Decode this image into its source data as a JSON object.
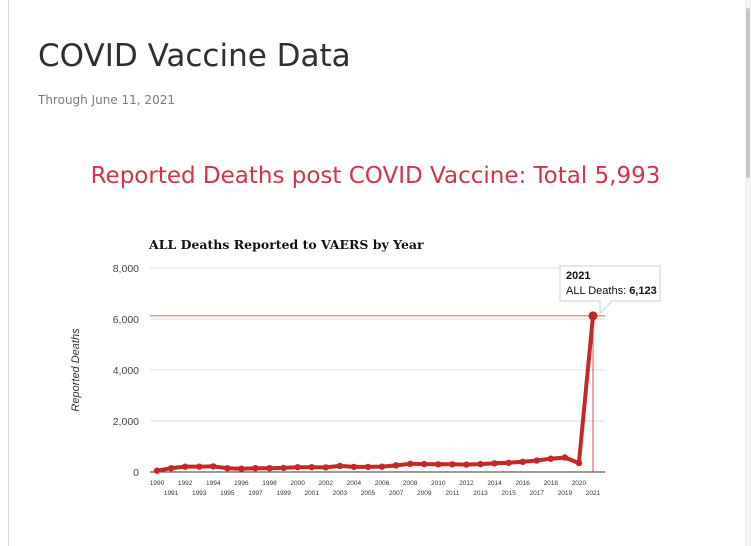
{
  "page": {
    "title": "COVID Vaccine Data",
    "subtitle": "Through June 11, 2021",
    "section_heading": "Reported Deaths post COVID Vaccine: Total 5,993"
  },
  "colors": {
    "heading": "#d0334a",
    "series": "#c62828",
    "reference_line": "#c62828"
  },
  "tooltip": {
    "year": "2021",
    "label": "ALL Deaths: ",
    "value": "6,123"
  },
  "chart_data": {
    "type": "line",
    "title": "ALL Deaths Reported to VAERS by Year",
    "xlabel": "",
    "ylabel": "Reported Deaths",
    "ylim": [
      0,
      8000
    ],
    "yticks": [
      0,
      2000,
      4000,
      6000,
      8000
    ],
    "ytick_labels": [
      "0",
      "2,000",
      "4,000",
      "6,000",
      "8,000"
    ],
    "x": [
      1990,
      1991,
      1992,
      1993,
      1994,
      1995,
      1996,
      1997,
      1998,
      1999,
      2000,
      2001,
      2002,
      2003,
      2004,
      2005,
      2006,
      2007,
      2008,
      2009,
      2010,
      2011,
      2012,
      2013,
      2014,
      2015,
      2016,
      2017,
      2018,
      2019,
      2020,
      2021
    ],
    "x_tick_labels": [
      "1990",
      "1991",
      "1992",
      "1993",
      "1994",
      "1995",
      "1996",
      "1997",
      "1998",
      "1999",
      "2000",
      "2001",
      "2002",
      "2003",
      "2004",
      "2005",
      "2006",
      "2007",
      "2008",
      "2009",
      "2010",
      "2011",
      "2012",
      "2013",
      "2014",
      "2015",
      "2016",
      "2017",
      "2018",
      "2019",
      "2020",
      "2021"
    ],
    "series": [
      {
        "values": [
          50,
          150,
          210,
          210,
          220,
          150,
          130,
          150,
          150,
          160,
          190,
          190,
          180,
          240,
          200,
          200,
          210,
          260,
          320,
          310,
          300,
          300,
          290,
          310,
          340,
          360,
          400,
          450,
          520,
          570,
          350,
          6123
        ]
      }
    ],
    "highlight": {
      "x": 2021,
      "y": 6123
    },
    "grid": true,
    "legend": "none"
  }
}
